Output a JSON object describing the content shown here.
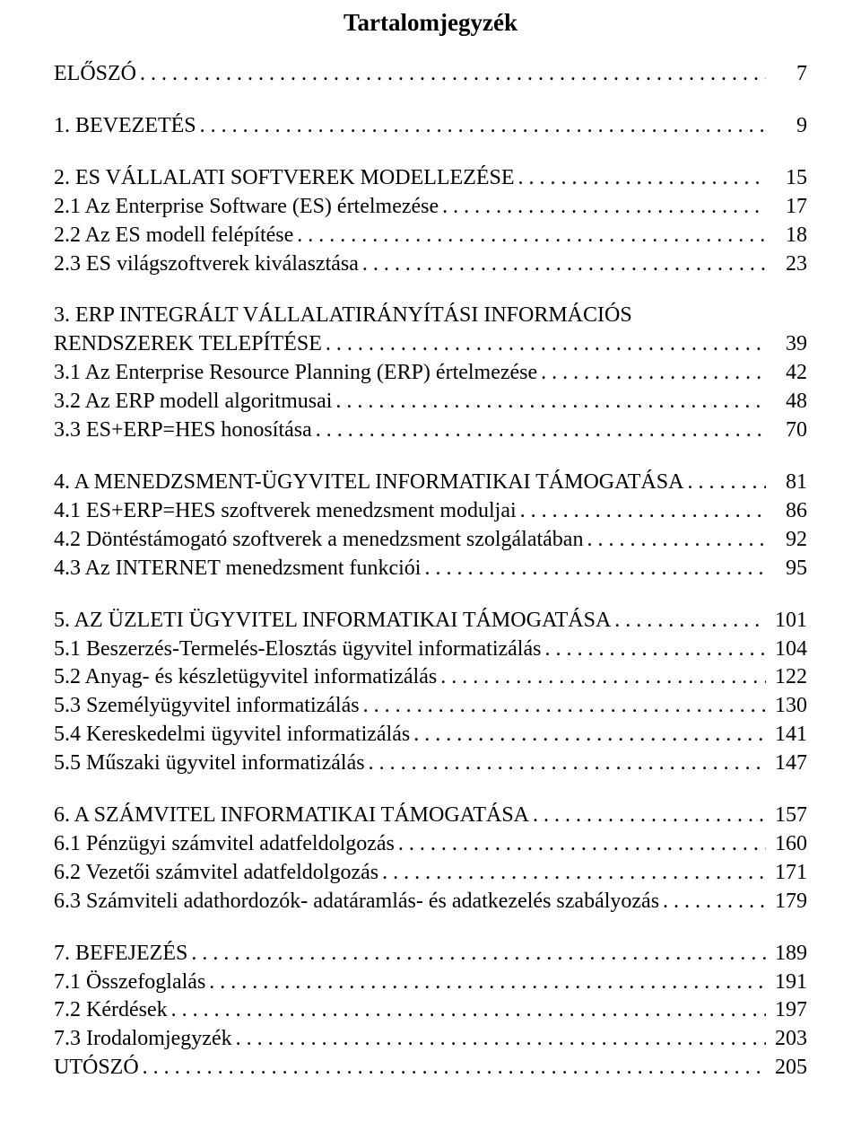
{
  "title": "Tartalomjegyzék",
  "font": {
    "family": "Times New Roman",
    "title_size_pt": 20,
    "body_size_pt": 18
  },
  "colors": {
    "text": "#000000",
    "background": "#ffffff"
  },
  "groups": [
    {
      "entries": [
        {
          "label": "ELŐSZÓ",
          "page": "7"
        }
      ]
    },
    {
      "entries": [
        {
          "label": "1. BEVEZETÉS",
          "page": "9"
        }
      ]
    },
    {
      "entries": [
        {
          "label": "2. ES VÁLLALATI SOFTVEREK MODELLEZÉSE",
          "page": "15"
        },
        {
          "label": "2.1 Az Enterprise Software (ES) értelmezése",
          "page": "17"
        },
        {
          "label": "2.2 Az ES modell felépítése",
          "page": "18"
        },
        {
          "label": "2.3 ES világszoftverek kiválasztása",
          "page": "23"
        }
      ]
    },
    {
      "entries": [
        {
          "label": "3. ERP INTEGRÁLT VÁLLALATIRÁNYÍTÁSI INFORMÁCIÓS",
          "wrap_label": "RENDSZEREK TELEPÍTÉSE",
          "page": "39"
        },
        {
          "label": "3.1 Az Enterprise Resource Planning (ERP) értelmezése",
          "page": "42"
        },
        {
          "label": "3.2 Az ERP modell algoritmusai",
          "page": "48"
        },
        {
          "label": "3.3 ES+ERP=HES honosítása",
          "page": "70"
        }
      ]
    },
    {
      "entries": [
        {
          "label": "4. A MENEDZSMENT-ÜGYVITEL INFORMATIKAI TÁMOGATÁSA",
          "page": "81"
        },
        {
          "label": "4.1 ES+ERP=HES szoftverek menedzsment moduljai",
          "page": "86"
        },
        {
          "label": "4.2 Döntéstámogató szoftverek a menedzsment szolgálatában",
          "page": "92"
        },
        {
          "label": "4.3 Az INTERNET menedzsment funkciói",
          "page": "95"
        }
      ]
    },
    {
      "entries": [
        {
          "label": "5. AZ ÜZLETI ÜGYVITEL INFORMATIKAI TÁMOGATÁSA",
          "page": "101"
        },
        {
          "label": "5.1 Beszerzés-Termelés-Elosztás ügyvitel informatizálás",
          "page": "104"
        },
        {
          "label": "5.2 Anyag- és készletügyvitel informatizálás",
          "page": "122"
        },
        {
          "label": "5.3 Személyügyvitel informatizálás",
          "page": "130"
        },
        {
          "label": "5.4 Kereskedelmi ügyvitel informatizálás",
          "page": "141"
        },
        {
          "label": "5.5 Műszaki ügyvitel informatizálás",
          "page": "147"
        }
      ]
    },
    {
      "entries": [
        {
          "label": "6. A SZÁMVITEL INFORMATIKAI TÁMOGATÁSA",
          "page": "157"
        },
        {
          "label": "6.1 Pénzügyi számvitel adatfeldolgozás",
          "page": "160"
        },
        {
          "label": "6.2 Vezetői számvitel adatfeldolgozás",
          "page": "171"
        },
        {
          "label": "6.3 Számviteli adathordozók- adatáramlás- és adatkezelés szabályozás",
          "page": "179"
        }
      ]
    },
    {
      "entries": [
        {
          "label": "7. BEFEJEZÉS",
          "page": "189"
        },
        {
          "label": "7.1 Összefoglalás",
          "page": "191"
        },
        {
          "label": "7.2 Kérdések",
          "page": "197"
        },
        {
          "label": "7.3 Irodalomjegyzék",
          "page": "203"
        },
        {
          "label": "UTÓSZÓ",
          "page": "205"
        }
      ]
    }
  ]
}
